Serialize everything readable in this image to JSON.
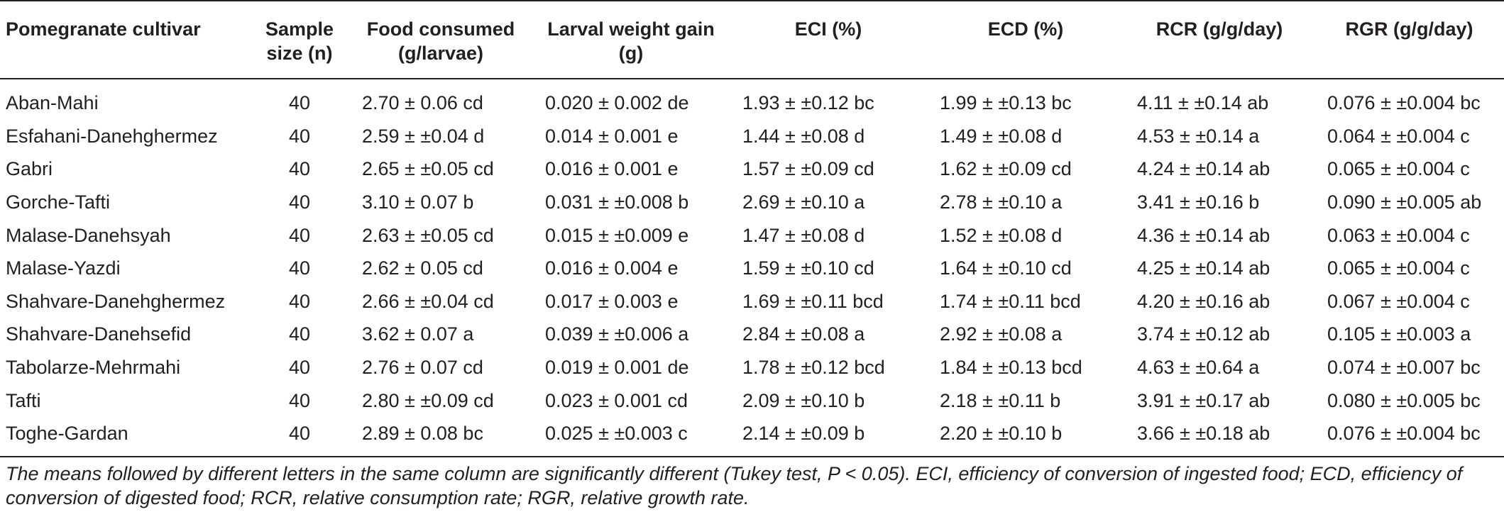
{
  "table": {
    "headers": [
      "Pomegranate cultivar",
      "Sample size (n)",
      "Food consumed (g/larvae)",
      "Larval weight gain (g)",
      "ECI (%)",
      "ECD (%)",
      "RCR (g/g/day)",
      "RGR (g/g/day)"
    ],
    "rows": [
      [
        "Aban-Mahi",
        "40",
        "2.70 ± 0.06  cd",
        "0.020 ± 0.002 de",
        "1.93 ± ±0.12 bc",
        "1.99 ± ±0.13 bc",
        "4.11 ± ±0.14 ab",
        "0.076 ± ±0.004 bc"
      ],
      [
        "Esfahani-Danehghermez",
        "40",
        "2.59 ± ±0.04 d",
        "0.014 ± 0.001 e",
        "1.44 ± ±0.08 d",
        "1.49 ± ±0.08 d",
        "4.53 ± ±0.14 a",
        "0.064 ± ±0.004 c"
      ],
      [
        "Gabri",
        "40",
        "2.65 ± ±0.05  cd",
        "0.016 ± 0.001 e",
        "1.57 ± ±0.09  cd",
        "1.62 ± ±0.09  cd",
        "4.24 ± ±0.14 ab",
        "0.065 ± ±0.004 c"
      ],
      [
        "Gorche-Tafti",
        "40",
        "3.10 ± 0.07 b",
        "0.031 ± ±0.008 b",
        "2.69 ± ±0.10 a",
        "2.78 ± ±0.10 a",
        "3.41 ± ±0.16 b",
        "0.090 ± ±0.005 ab"
      ],
      [
        "Malase-Danehsyah",
        "40",
        "2.63 ± ±0.05  cd",
        "0.015 ± ±0.009 e",
        "1.47 ± ±0.08 d",
        "1.52 ± ±0.08 d",
        "4.36 ± ±0.14 ab",
        "0.063 ± ±0.004 c"
      ],
      [
        "Malase-Yazdi",
        "40",
        "2.62 ± 0.05  cd",
        "0.016 ± 0.004 e",
        "1.59 ± ±0.10  cd",
        "1.64 ± ±0.10  cd",
        "4.25 ± ±0.14 ab",
        "0.065 ± ±0.004 c"
      ],
      [
        "Shahvare-Danehghermez",
        "40",
        "2.66 ± ±0.04  cd",
        "0.017 ± 0.003 e",
        "1.69 ± ±0.11 bcd",
        "1.74 ± ±0.11 bcd",
        "4.20 ± ±0.16 ab",
        "0.067 ± ±0.004 c"
      ],
      [
        "Shahvare-Danehsefid",
        "40",
        "3.62 ± 0.07 a",
        "0.039 ± ±0.006 a",
        "2.84 ± ±0.08 a",
        "2.92 ± ±0.08 a",
        "3.74 ± ±0.12 ab",
        "0.105 ± ±0.003 a"
      ],
      [
        "Tabolarze-Mehrmahi",
        "40",
        "2.76 ± 0.07  cd",
        "0.019 ± 0.001 de",
        "1.78 ± ±0.12 bcd",
        "1.84 ± ±0.13 bcd",
        "4.63 ± ±0.64 a",
        "0.074 ± ±0.007 bc"
      ],
      [
        "Tafti",
        "40",
        "2.80 ± ±0.09  cd",
        "0.023 ± 0.001  cd",
        "2.09 ± ±0.10 b",
        "2.18 ± ±0.11 b",
        "3.91 ± ±0.17 ab",
        "0.080 ± ±0.005 bc"
      ],
      [
        "Toghe-Gardan",
        "40",
        "2.89 ± 0.08 bc",
        "0.025 ± ±0.003 c",
        "2.14 ± ±0.09 b",
        "2.20 ± ±0.10 b",
        "3.66 ± ±0.18 ab",
        "0.076 ± ±0.004 bc"
      ]
    ]
  },
  "footnote": "The means followed by different letters in the same column are significantly different (Tukey test, P < 0.05). ECI, efficiency of conversion of ingested food; ECD, efficiency of conversion of digested food; RCR, relative consumption rate; RGR, relative growth rate."
}
